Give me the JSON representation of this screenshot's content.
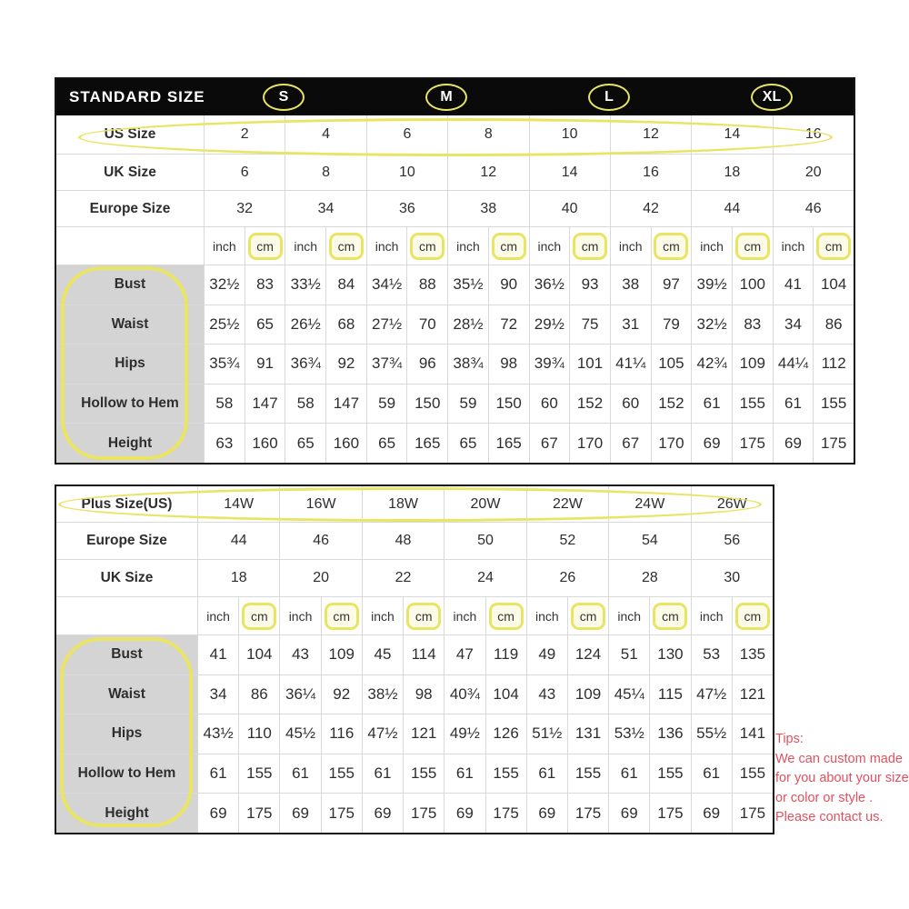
{
  "colors": {
    "annotation_yellow": "#e9e464",
    "tips_red": "#e0515f",
    "label_gray": "#d4d4d4",
    "header_black": "#0a0a0a",
    "grid_line": "#d9d9d9"
  },
  "chart_data": [
    {
      "type": "table",
      "title": "STANDARD SIZE",
      "size_groups": [
        "S",
        "M",
        "L",
        "XL"
      ],
      "size_rows": [
        {
          "label": "US Size",
          "values": [
            "2",
            "4",
            "6",
            "8",
            "10",
            "12",
            "14",
            "16"
          ],
          "highlighted": true
        },
        {
          "label": "UK Size",
          "values": [
            "6",
            "8",
            "10",
            "12",
            "14",
            "16",
            "18",
            "20"
          ],
          "highlighted": false
        },
        {
          "label": "Europe Size",
          "values": [
            "32",
            "34",
            "36",
            "38",
            "40",
            "42",
            "44",
            "46"
          ],
          "highlighted": false
        }
      ],
      "units": {
        "inch": "inch",
        "cm": "cm"
      },
      "measurement_rows": [
        {
          "label": "Bust",
          "pairs": [
            [
              "32½",
              "83"
            ],
            [
              "33½",
              "84"
            ],
            [
              "34½",
              "88"
            ],
            [
              "35½",
              "90"
            ],
            [
              "36½",
              "93"
            ],
            [
              "38",
              "97"
            ],
            [
              "39½",
              "100"
            ],
            [
              "41",
              "104"
            ]
          ]
        },
        {
          "label": "Waist",
          "pairs": [
            [
              "25½",
              "65"
            ],
            [
              "26½",
              "68"
            ],
            [
              "27½",
              "70"
            ],
            [
              "28½",
              "72"
            ],
            [
              "29½",
              "75"
            ],
            [
              "31",
              "79"
            ],
            [
              "32½",
              "83"
            ],
            [
              "34",
              "86"
            ]
          ]
        },
        {
          "label": "Hips",
          "pairs": [
            [
              "35¾",
              "91"
            ],
            [
              "36¾",
              "92"
            ],
            [
              "37¾",
              "96"
            ],
            [
              "38¾",
              "98"
            ],
            [
              "39¾",
              "101"
            ],
            [
              "41¼",
              "105"
            ],
            [
              "42¾",
              "109"
            ],
            [
              "44¼",
              "112"
            ]
          ]
        },
        {
          "label": "Hollow to Hem",
          "pairs": [
            [
              "58",
              "147"
            ],
            [
              "58",
              "147"
            ],
            [
              "59",
              "150"
            ],
            [
              "59",
              "150"
            ],
            [
              "60",
              "152"
            ],
            [
              "60",
              "152"
            ],
            [
              "61",
              "155"
            ],
            [
              "61",
              "155"
            ]
          ]
        },
        {
          "label": "Height",
          "pairs": [
            [
              "63",
              "160"
            ],
            [
              "65",
              "160"
            ],
            [
              "65",
              "165"
            ],
            [
              "65",
              "165"
            ],
            [
              "67",
              "170"
            ],
            [
              "67",
              "170"
            ],
            [
              "69",
              "175"
            ],
            [
              "69",
              "175"
            ]
          ]
        }
      ]
    },
    {
      "type": "table",
      "title": "",
      "size_rows": [
        {
          "label": "Plus Size(US)",
          "values": [
            "14W",
            "16W",
            "18W",
            "20W",
            "22W",
            "24W",
            "26W"
          ],
          "highlighted": true
        },
        {
          "label": "Europe Size",
          "values": [
            "44",
            "46",
            "48",
            "50",
            "52",
            "54",
            "56"
          ],
          "highlighted": false
        },
        {
          "label": "UK Size",
          "values": [
            "18",
            "20",
            "22",
            "24",
            "26",
            "28",
            "30"
          ],
          "highlighted": false
        }
      ],
      "units": {
        "inch": "inch",
        "cm": "cm"
      },
      "measurement_rows": [
        {
          "label": "Bust",
          "pairs": [
            [
              "41",
              "104"
            ],
            [
              "43",
              "109"
            ],
            [
              "45",
              "114"
            ],
            [
              "47",
              "119"
            ],
            [
              "49",
              "124"
            ],
            [
              "51",
              "130"
            ],
            [
              "53",
              "135"
            ]
          ]
        },
        {
          "label": "Waist",
          "pairs": [
            [
              "34",
              "86"
            ],
            [
              "36¼",
              "92"
            ],
            [
              "38½",
              "98"
            ],
            [
              "40¾",
              "104"
            ],
            [
              "43",
              "109"
            ],
            [
              "45¼",
              "115"
            ],
            [
              "47½",
              "121"
            ]
          ]
        },
        {
          "label": "Hips",
          "pairs": [
            [
              "43½",
              "110"
            ],
            [
              "45½",
              "116"
            ],
            [
              "47½",
              "121"
            ],
            [
              "49½",
              "126"
            ],
            [
              "51½",
              "131"
            ],
            [
              "53½",
              "136"
            ],
            [
              "55½",
              "141"
            ]
          ]
        },
        {
          "label": "Hollow to Hem",
          "pairs": [
            [
              "61",
              "155"
            ],
            [
              "61",
              "155"
            ],
            [
              "61",
              "155"
            ],
            [
              "61",
              "155"
            ],
            [
              "61",
              "155"
            ],
            [
              "61",
              "155"
            ],
            [
              "61",
              "155"
            ]
          ]
        },
        {
          "label": "Height",
          "pairs": [
            [
              "69",
              "175"
            ],
            [
              "69",
              "175"
            ],
            [
              "69",
              "175"
            ],
            [
              "69",
              "175"
            ],
            [
              "69",
              "175"
            ],
            [
              "69",
              "175"
            ],
            [
              "69",
              "175"
            ]
          ]
        }
      ]
    }
  ],
  "annotations": {
    "circled_items": [
      "S",
      "M",
      "L",
      "XL",
      "US Size row",
      "cm unit cells",
      "measurement labels",
      "Plus Size(US) row"
    ]
  },
  "tips": {
    "title": "Tips:",
    "lines": [
      "We can custom made",
      "for you about your size",
      "or color or style .",
      "Please contact us."
    ]
  }
}
